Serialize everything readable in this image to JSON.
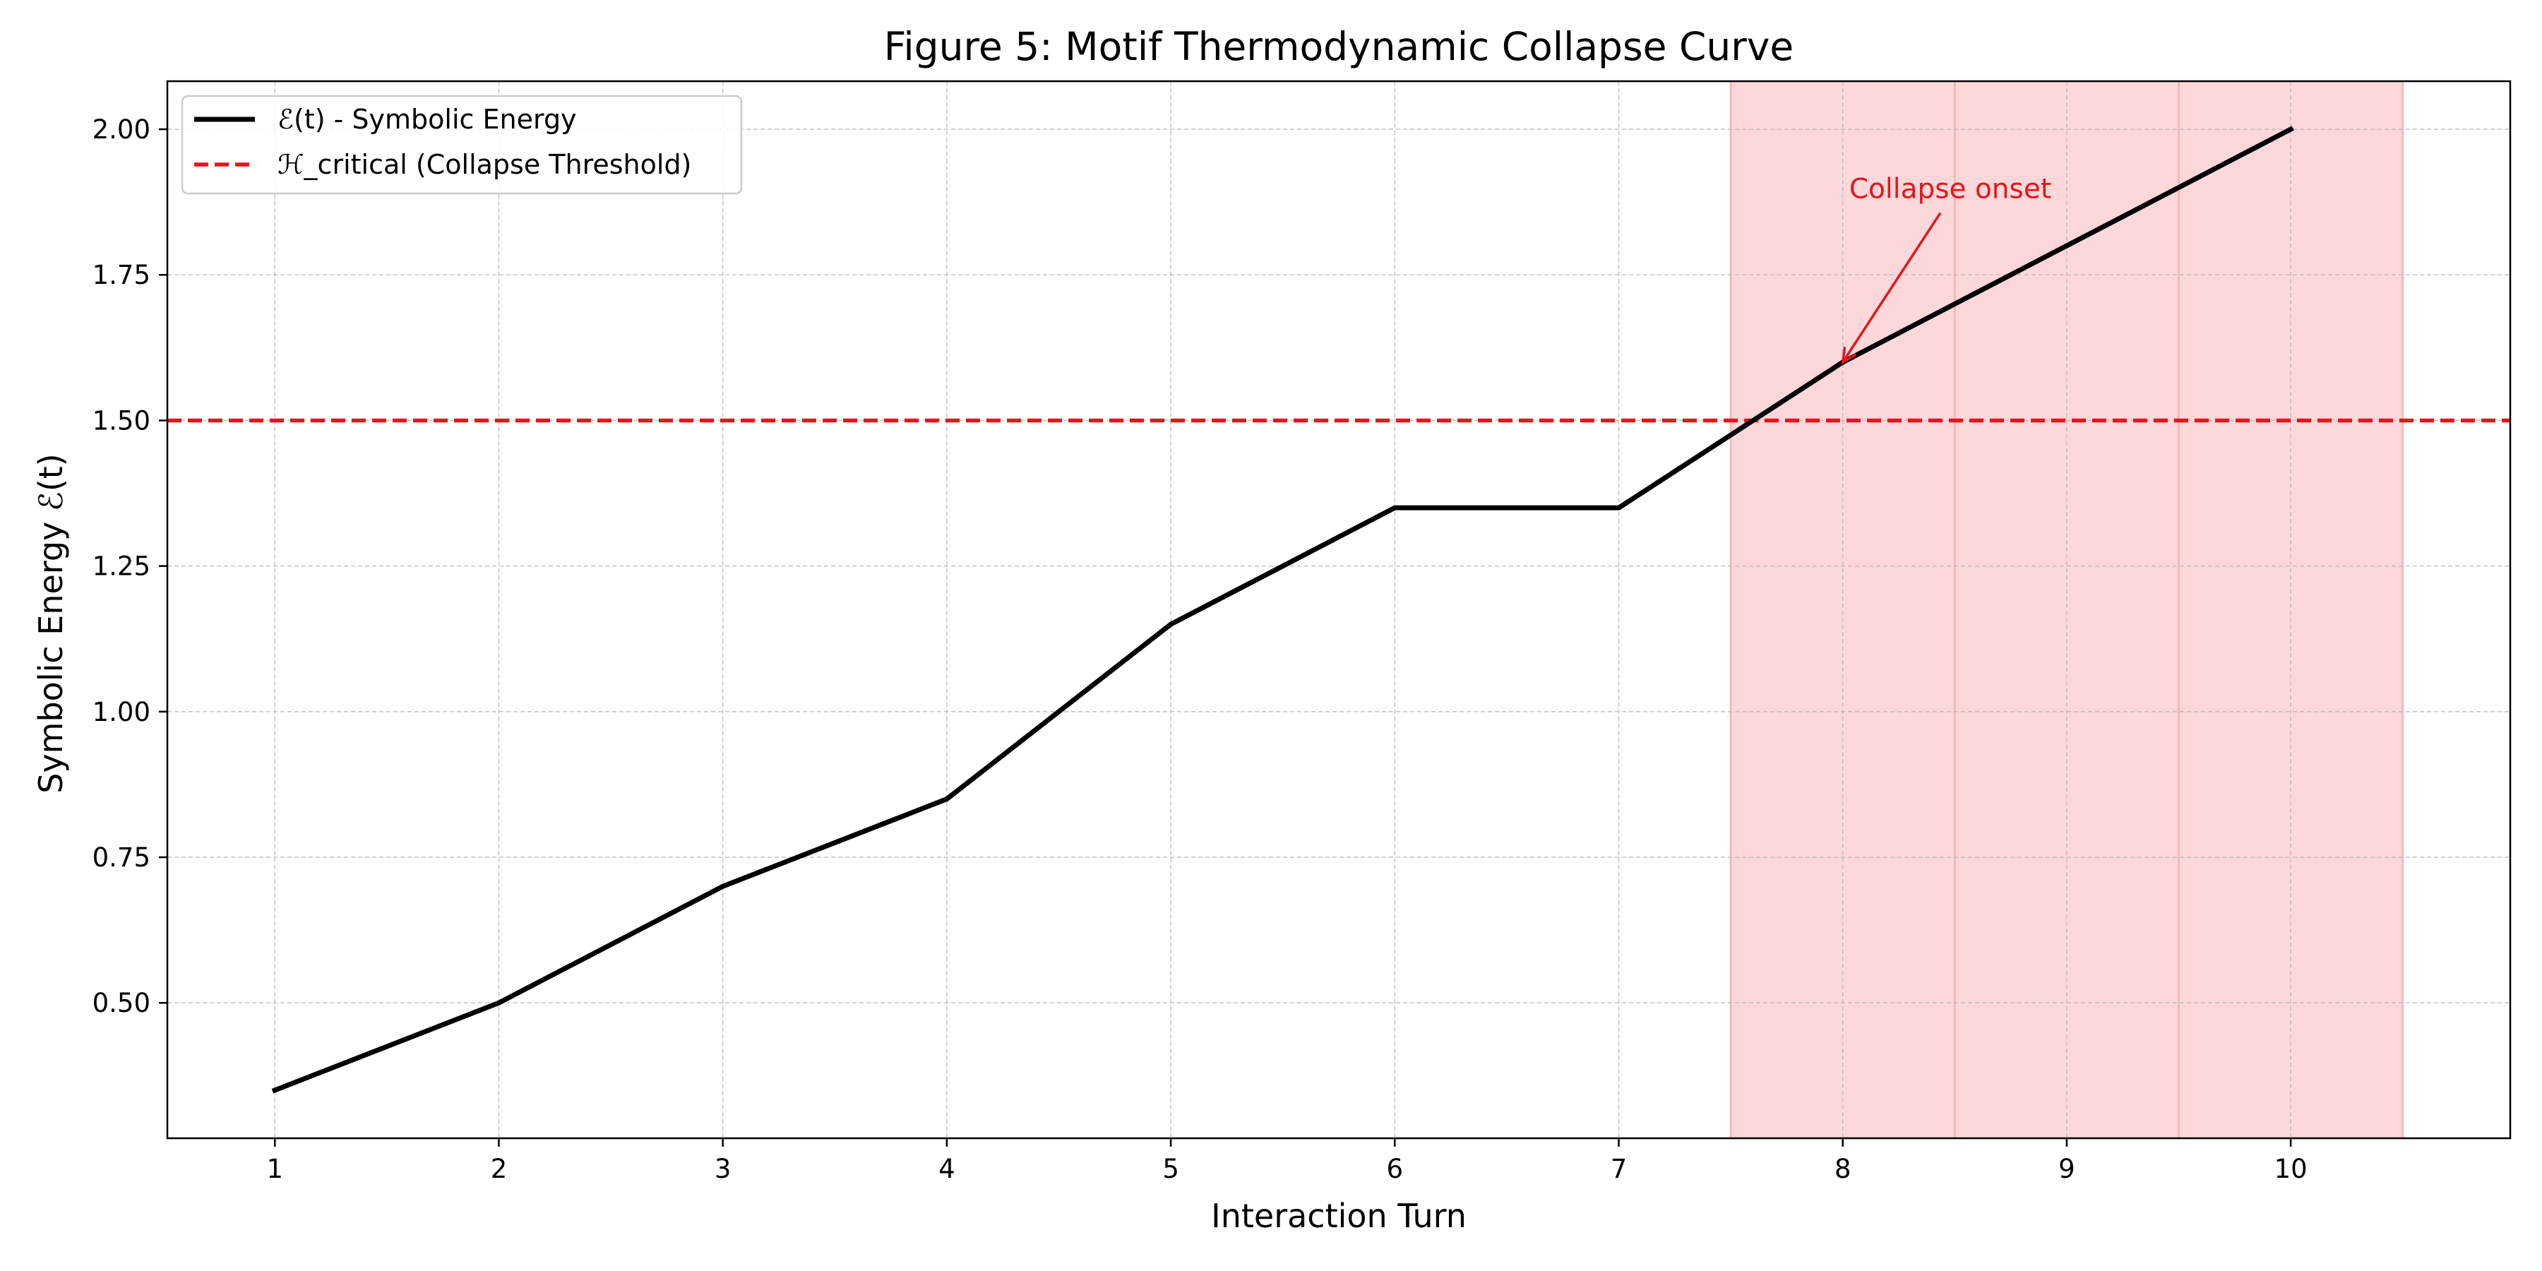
{
  "chart_data": {
    "type": "line",
    "title": "Figure 5: Motif Thermodynamic Collapse Curve",
    "xlabel": "Interaction Turn",
    "ylabel": "Symbolic Energy ℰ(t)",
    "xlim": [
      0.52,
      10.98
    ],
    "ylim": [
      0.2675,
      2.0825
    ],
    "x_ticks": [
      1,
      2,
      3,
      4,
      5,
      6,
      7,
      8,
      9,
      10
    ],
    "y_ticks": [
      0.5,
      0.75,
      1.0,
      1.25,
      1.5,
      1.75,
      2.0
    ],
    "y_tick_labels": [
      "0.50",
      "0.75",
      "1.00",
      "1.25",
      "1.50",
      "1.75",
      "2.00"
    ],
    "grid": true,
    "legend_position": "top-left",
    "series": [
      {
        "name": "ℰ(t) - Symbolic Energy",
        "color": "#000000",
        "style": "solid",
        "x": [
          1,
          2,
          3,
          4,
          5,
          6,
          7,
          8,
          9,
          10
        ],
        "y": [
          0.35,
          0.5,
          0.7,
          0.85,
          1.15,
          1.35,
          1.35,
          1.6,
          1.8,
          2.0
        ]
      }
    ],
    "threshold": {
      "name": "ℋ_critical (Collapse Threshold)",
      "value": 1.5,
      "color": "#e8141c",
      "style": "dashed"
    },
    "shaded_regions": [
      {
        "x_start": 7.5,
        "x_end": 8.5,
        "color": "#fdd8da"
      },
      {
        "x_start": 8.5,
        "x_end": 9.5,
        "color": "#fdd8da"
      },
      {
        "x_start": 9.5,
        "x_end": 10.5,
        "color": "#fdd8da"
      }
    ],
    "annotation": {
      "text": "Collapse onset",
      "point_x": 8,
      "point_y": 1.6,
      "text_x": 8.48,
      "text_y": 1.9,
      "color": "#e8141c"
    }
  }
}
